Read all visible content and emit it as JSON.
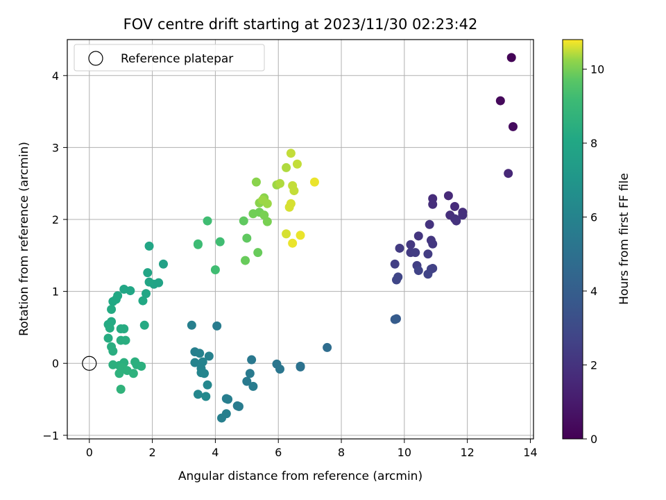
{
  "chart_data": {
    "type": "scatter",
    "title": "FOV centre drift starting at 2023/11/30 02:23:42",
    "xlabel": "Angular distance from reference (arcmin)",
    "ylabel": "Rotation from reference (arcmin)",
    "xlim": [
      -0.7,
      14.1
    ],
    "ylim": [
      -1.05,
      4.5
    ],
    "xticks": [
      0,
      2,
      4,
      6,
      8,
      10,
      12,
      14
    ],
    "yticks": [
      -1,
      0,
      1,
      2,
      3,
      4
    ],
    "grid": true,
    "legend": {
      "placement": "top-left",
      "entries": [
        "Reference platepar"
      ]
    },
    "reference_point": {
      "x": 0,
      "y": 0
    },
    "colorbar": {
      "label": "Hours from first FF file",
      "colormap": "viridis",
      "range": [
        0,
        10.8
      ],
      "ticks": [
        0,
        2,
        4,
        6,
        8,
        10
      ]
    },
    "points": [
      {
        "x": 13.4,
        "y": 4.25,
        "c": 0.1
      },
      {
        "x": 13.05,
        "y": 3.65,
        "c": 0.3
      },
      {
        "x": 13.45,
        "y": 3.29,
        "c": 0.4
      },
      {
        "x": 13.3,
        "y": 2.64,
        "c": 1.5
      },
      {
        "x": 11.4,
        "y": 2.33,
        "c": 1.6
      },
      {
        "x": 10.9,
        "y": 2.29,
        "c": 1.7
      },
      {
        "x": 10.9,
        "y": 2.21,
        "c": 1.8
      },
      {
        "x": 11.6,
        "y": 2.18,
        "c": 1.7
      },
      {
        "x": 11.85,
        "y": 2.1,
        "c": 1.8
      },
      {
        "x": 11.85,
        "y": 2.06,
        "c": 1.9
      },
      {
        "x": 11.45,
        "y": 2.06,
        "c": 1.8
      },
      {
        "x": 11.6,
        "y": 2.01,
        "c": 1.9
      },
      {
        "x": 11.65,
        "y": 1.98,
        "c": 2.0
      },
      {
        "x": 10.8,
        "y": 1.93,
        "c": 2.0
      },
      {
        "x": 10.45,
        "y": 1.77,
        "c": 2.1
      },
      {
        "x": 10.85,
        "y": 1.71,
        "c": 2.1
      },
      {
        "x": 10.9,
        "y": 1.66,
        "c": 2.2
      },
      {
        "x": 10.2,
        "y": 1.65,
        "c": 2.2
      },
      {
        "x": 9.85,
        "y": 1.6,
        "c": 2.3
      },
      {
        "x": 10.2,
        "y": 1.54,
        "c": 2.3
      },
      {
        "x": 10.35,
        "y": 1.54,
        "c": 2.4
      },
      {
        "x": 10.75,
        "y": 1.52,
        "c": 2.4
      },
      {
        "x": 9.7,
        "y": 1.38,
        "c": 2.5
      },
      {
        "x": 10.4,
        "y": 1.36,
        "c": 2.5
      },
      {
        "x": 10.9,
        "y": 1.32,
        "c": 2.6
      },
      {
        "x": 10.85,
        "y": 1.31,
        "c": 2.6
      },
      {
        "x": 10.45,
        "y": 1.29,
        "c": 2.7
      },
      {
        "x": 10.75,
        "y": 1.24,
        "c": 2.7
      },
      {
        "x": 9.8,
        "y": 1.2,
        "c": 2.8
      },
      {
        "x": 9.75,
        "y": 1.16,
        "c": 2.8
      },
      {
        "x": 9.75,
        "y": 0.62,
        "c": 3.8
      },
      {
        "x": 9.7,
        "y": 0.61,
        "c": 3.9
      },
      {
        "x": 7.55,
        "y": 0.22,
        "c": 4.8
      },
      {
        "x": 6.7,
        "y": -0.04,
        "c": 5.1
      },
      {
        "x": 6.7,
        "y": -0.05,
        "c": 5.1
      },
      {
        "x": 5.95,
        "y": -0.01,
        "c": 5.3
      },
      {
        "x": 6.05,
        "y": -0.08,
        "c": 5.3
      },
      {
        "x": 5.15,
        "y": 0.05,
        "c": 5.4
      },
      {
        "x": 5.1,
        "y": -0.14,
        "c": 5.5
      },
      {
        "x": 5.0,
        "y": -0.25,
        "c": 5.5
      },
      {
        "x": 5.2,
        "y": -0.32,
        "c": 5.6
      },
      {
        "x": 4.7,
        "y": -0.59,
        "c": 5.6
      },
      {
        "x": 4.75,
        "y": -0.6,
        "c": 5.6
      },
      {
        "x": 4.35,
        "y": -0.49,
        "c": 5.7
      },
      {
        "x": 4.4,
        "y": -0.5,
        "c": 5.7
      },
      {
        "x": 4.35,
        "y": -0.7,
        "c": 5.8
      },
      {
        "x": 4.2,
        "y": -0.76,
        "c": 5.8
      },
      {
        "x": 4.05,
        "y": 0.52,
        "c": 5.6
      },
      {
        "x": 3.25,
        "y": 0.53,
        "c": 5.8
      },
      {
        "x": 3.35,
        "y": 0.16,
        "c": 5.8
      },
      {
        "x": 3.5,
        "y": 0.14,
        "c": 5.9
      },
      {
        "x": 3.8,
        "y": 0.1,
        "c": 5.9
      },
      {
        "x": 3.35,
        "y": 0.01,
        "c": 6.0
      },
      {
        "x": 3.6,
        "y": 0.02,
        "c": 6.0
      },
      {
        "x": 3.55,
        "y": -0.07,
        "c": 6.0
      },
      {
        "x": 3.55,
        "y": -0.13,
        "c": 6.1
      },
      {
        "x": 3.65,
        "y": -0.14,
        "c": 6.1
      },
      {
        "x": 3.75,
        "y": -0.3,
        "c": 6.2
      },
      {
        "x": 3.45,
        "y": -0.43,
        "c": 6.2
      },
      {
        "x": 3.7,
        "y": -0.46,
        "c": 6.3
      },
      {
        "x": 2.35,
        "y": 1.38,
        "c": 7.7
      },
      {
        "x": 2.2,
        "y": 1.12,
        "c": 7.8
      },
      {
        "x": 2.05,
        "y": 1.1,
        "c": 7.8
      },
      {
        "x": 1.9,
        "y": 1.63,
        "c": 7.9
      },
      {
        "x": 1.85,
        "y": 1.26,
        "c": 7.9
      },
      {
        "x": 1.9,
        "y": 1.13,
        "c": 7.9
      },
      {
        "x": 1.1,
        "y": 1.03,
        "c": 8.0
      },
      {
        "x": 1.3,
        "y": 1.01,
        "c": 8.0
      },
      {
        "x": 1.8,
        "y": 0.97,
        "c": 8.0
      },
      {
        "x": 0.9,
        "y": 0.94,
        "c": 8.1
      },
      {
        "x": 0.75,
        "y": 0.86,
        "c": 8.1
      },
      {
        "x": 0.85,
        "y": 0.89,
        "c": 8.1
      },
      {
        "x": 1.7,
        "y": 0.87,
        "c": 8.1
      },
      {
        "x": 0.7,
        "y": 0.75,
        "c": 8.2
      },
      {
        "x": 0.6,
        "y": 0.54,
        "c": 8.2
      },
      {
        "x": 0.7,
        "y": 0.58,
        "c": 8.2
      },
      {
        "x": 1.75,
        "y": 0.53,
        "c": 8.2
      },
      {
        "x": 0.65,
        "y": 0.49,
        "c": 8.3
      },
      {
        "x": 1.0,
        "y": 0.48,
        "c": 8.3
      },
      {
        "x": 1.1,
        "y": 0.48,
        "c": 8.3
      },
      {
        "x": 0.6,
        "y": 0.35,
        "c": 8.3
      },
      {
        "x": 1.0,
        "y": 0.32,
        "c": 8.4
      },
      {
        "x": 1.15,
        "y": 0.32,
        "c": 8.4
      },
      {
        "x": 0.7,
        "y": 0.23,
        "c": 8.4
      },
      {
        "x": 0.75,
        "y": 0.17,
        "c": 8.4
      },
      {
        "x": 1.45,
        "y": 0.02,
        "c": 8.5
      },
      {
        "x": 1.1,
        "y": 0.01,
        "c": 8.5
      },
      {
        "x": 0.75,
        "y": -0.02,
        "c": 8.5
      },
      {
        "x": 0.95,
        "y": -0.03,
        "c": 8.5
      },
      {
        "x": 1.5,
        "y": -0.02,
        "c": 8.5
      },
      {
        "x": 1.65,
        "y": -0.04,
        "c": 8.5
      },
      {
        "x": 1.05,
        "y": -0.06,
        "c": 8.6
      },
      {
        "x": 0.95,
        "y": -0.14,
        "c": 8.6
      },
      {
        "x": 1.2,
        "y": -0.1,
        "c": 8.6
      },
      {
        "x": 1.4,
        "y": -0.14,
        "c": 8.6
      },
      {
        "x": 1.0,
        "y": -0.36,
        "c": 8.7
      },
      {
        "x": 3.45,
        "y": 1.66,
        "c": 9.2
      },
      {
        "x": 3.45,
        "y": 1.65,
        "c": 9.2
      },
      {
        "x": 4.15,
        "y": 1.69,
        "c": 9.3
      },
      {
        "x": 3.75,
        "y": 1.98,
        "c": 9.3
      },
      {
        "x": 4.0,
        "y": 1.3,
        "c": 9.3
      },
      {
        "x": 4.9,
        "y": 1.98,
        "c": 9.8
      },
      {
        "x": 5.0,
        "y": 1.74,
        "c": 9.8
      },
      {
        "x": 4.95,
        "y": 1.43,
        "c": 9.9
      },
      {
        "x": 5.35,
        "y": 1.54,
        "c": 9.9
      },
      {
        "x": 5.2,
        "y": 2.08,
        "c": 10.0
      },
      {
        "x": 5.4,
        "y": 2.1,
        "c": 10.0
      },
      {
        "x": 5.55,
        "y": 2.06,
        "c": 10.1
      },
      {
        "x": 5.65,
        "y": 1.97,
        "c": 10.1
      },
      {
        "x": 5.3,
        "y": 2.52,
        "c": 10.2
      },
      {
        "x": 5.4,
        "y": 2.23,
        "c": 10.2
      },
      {
        "x": 5.55,
        "y": 2.3,
        "c": 10.2
      },
      {
        "x": 5.5,
        "y": 2.27,
        "c": 10.3
      },
      {
        "x": 5.65,
        "y": 2.22,
        "c": 10.3
      },
      {
        "x": 5.95,
        "y": 2.48,
        "c": 10.3
      },
      {
        "x": 6.05,
        "y": 2.5,
        "c": 10.4
      },
      {
        "x": 6.25,
        "y": 2.72,
        "c": 10.4
      },
      {
        "x": 6.4,
        "y": 2.92,
        "c": 10.5
      },
      {
        "x": 6.6,
        "y": 2.77,
        "c": 10.5
      },
      {
        "x": 6.45,
        "y": 2.47,
        "c": 10.5
      },
      {
        "x": 6.5,
        "y": 2.4,
        "c": 10.5
      },
      {
        "x": 6.4,
        "y": 2.22,
        "c": 10.6
      },
      {
        "x": 6.35,
        "y": 2.17,
        "c": 10.6
      },
      {
        "x": 6.25,
        "y": 1.8,
        "c": 10.6
      },
      {
        "x": 6.7,
        "y": 1.78,
        "c": 10.7
      },
      {
        "x": 6.45,
        "y": 1.67,
        "c": 10.7
      },
      {
        "x": 7.15,
        "y": 2.52,
        "c": 10.7
      }
    ]
  }
}
